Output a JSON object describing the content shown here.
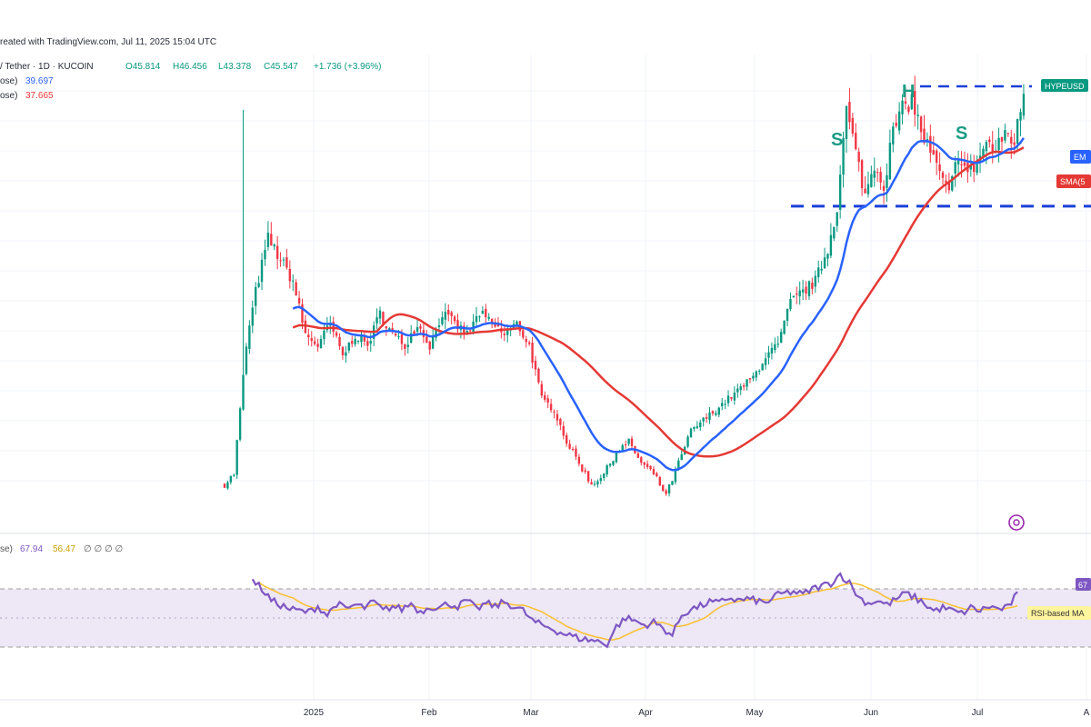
{
  "header": {
    "created_line": "reated with TradingView.com, Jul 11, 2025 15:04 UTC",
    "pair_line": "/ Tether · 1D · KUCOIN",
    "ohlc": {
      "open": "O45.814",
      "high": "H46.456",
      "low": "L43.378",
      "close": "C45.547",
      "change": "+1.736 (+3.96%)"
    },
    "ema_line_label": "ose)",
    "ema_value": "39.697",
    "sma_line_label": "ose)",
    "sma_value": "37.665",
    "rsi_line_label": "se)",
    "rsi_value": "67.94",
    "rsi_ma_value": "56.47",
    "rsi_extra": "∅ ∅ ∅ ∅"
  },
  "price_tags": {
    "last": "HYPEUSD",
    "ema": "EM",
    "sma": "SMA(5",
    "rsi": "67",
    "rsi_ma": "RSI-based MA"
  },
  "pattern_labels": {
    "left_shoulder": "S",
    "head": "H",
    "right_shoulder": "S"
  },
  "colors": {
    "up": "#089981",
    "down": "#f23645",
    "ema": "#2962ff",
    "sma": "#e53935",
    "rsi": "#7e57c2",
    "rsi_ma": "#fbc02d",
    "rsi_band": "#ede7f6",
    "neckline": "#1a3fd8",
    "pattern": "#1b9c85"
  },
  "chart_data": {
    "type": "candlestick",
    "x_ticks": [
      "2025",
      "Feb",
      "Mar",
      "Apr",
      "May",
      "Jun",
      "Jul",
      "A"
    ],
    "price_anchors": [
      [
        0,
        9
      ],
      [
        3,
        10
      ],
      [
        7,
        22
      ],
      [
        10,
        27
      ],
      [
        14,
        32
      ],
      [
        18,
        30
      ],
      [
        22,
        28
      ],
      [
        26,
        23
      ],
      [
        30,
        22
      ],
      [
        34,
        24
      ],
      [
        38,
        21
      ],
      [
        42,
        23
      ],
      [
        46,
        22
      ],
      [
        50,
        25
      ],
      [
        54,
        23
      ],
      [
        58,
        22
      ],
      [
        62,
        24
      ],
      [
        66,
        22
      ],
      [
        70,
        25
      ],
      [
        74,
        24
      ],
      [
        78,
        23
      ],
      [
        82,
        25
      ],
      [
        86,
        24
      ],
      [
        90,
        23
      ],
      [
        94,
        24
      ],
      [
        98,
        22
      ],
      [
        102,
        17
      ],
      [
        106,
        16
      ],
      [
        110,
        13
      ],
      [
        114,
        11
      ],
      [
        118,
        9
      ],
      [
        122,
        10
      ],
      [
        126,
        12
      ],
      [
        130,
        13
      ],
      [
        134,
        11
      ],
      [
        138,
        10
      ],
      [
        142,
        8
      ],
      [
        146,
        11
      ],
      [
        150,
        14
      ],
      [
        154,
        15
      ],
      [
        158,
        16
      ],
      [
        162,
        17
      ],
      [
        166,
        18
      ],
      [
        170,
        19
      ],
      [
        174,
        21
      ],
      [
        178,
        22
      ],
      [
        182,
        26
      ],
      [
        186,
        27
      ],
      [
        190,
        28
      ],
      [
        194,
        31
      ],
      [
        197,
        35
      ],
      [
        200,
        44
      ],
      [
        203,
        40
      ],
      [
        206,
        36
      ],
      [
        209,
        39
      ],
      [
        212,
        37
      ],
      [
        215,
        42
      ],
      [
        218,
        44
      ],
      [
        221,
        45
      ],
      [
        224,
        42
      ],
      [
        227,
        40
      ],
      [
        230,
        38
      ],
      [
        233,
        36
      ],
      [
        236,
        40
      ],
      [
        239,
        38
      ],
      [
        242,
        39
      ],
      [
        245,
        41
      ],
      [
        248,
        40
      ],
      [
        251,
        42
      ],
      [
        254,
        41
      ],
      [
        257,
        45.5
      ]
    ],
    "ema20_final": 39.697,
    "sma50_final": 37.665,
    "neckline": 35,
    "head_level": 46.2,
    "rsi_anchors": [
      [
        9,
        76
      ],
      [
        12,
        70
      ],
      [
        15,
        62
      ],
      [
        18,
        59
      ],
      [
        21,
        56
      ],
      [
        24,
        55
      ],
      [
        27,
        54
      ],
      [
        30,
        58
      ],
      [
        33,
        52
      ],
      [
        36,
        60
      ],
      [
        39,
        56
      ],
      [
        42,
        59
      ],
      [
        45,
        57
      ],
      [
        48,
        61
      ],
      [
        51,
        55
      ],
      [
        54,
        58
      ],
      [
        57,
        56
      ],
      [
        60,
        60
      ],
      [
        63,
        54
      ],
      [
        66,
        58
      ],
      [
        69,
        57
      ],
      [
        72,
        60
      ],
      [
        75,
        58
      ],
      [
        78,
        62
      ],
      [
        81,
        56
      ],
      [
        84,
        60
      ],
      [
        87,
        58
      ],
      [
        90,
        61
      ],
      [
        93,
        58
      ],
      [
        96,
        55
      ],
      [
        99,
        48
      ],
      [
        102,
        45
      ],
      [
        105,
        43
      ],
      [
        108,
        40
      ],
      [
        111,
        38
      ],
      [
        114,
        36
      ],
      [
        117,
        35
      ],
      [
        120,
        34
      ],
      [
        123,
        32
      ],
      [
        126,
        44
      ],
      [
        129,
        50
      ],
      [
        132,
        48
      ],
      [
        135,
        45
      ],
      [
        138,
        47
      ],
      [
        141,
        43
      ],
      [
        144,
        38
      ],
      [
        147,
        52
      ],
      [
        150,
        56
      ],
      [
        153,
        58
      ],
      [
        156,
        61
      ],
      [
        159,
        60
      ],
      [
        162,
        64
      ],
      [
        165,
        62
      ],
      [
        168,
        63
      ],
      [
        171,
        62
      ],
      [
        174,
        60
      ],
      [
        177,
        65
      ],
      [
        180,
        67
      ],
      [
        183,
        68
      ],
      [
        186,
        66
      ],
      [
        189,
        70
      ],
      [
        192,
        72
      ],
      [
        195,
        74
      ],
      [
        198,
        80
      ],
      [
        201,
        74
      ],
      [
        204,
        64
      ],
      [
        207,
        60
      ],
      [
        210,
        62
      ],
      [
        213,
        59
      ],
      [
        216,
        63
      ],
      [
        219,
        67
      ],
      [
        222,
        64
      ],
      [
        225,
        60
      ],
      [
        228,
        55
      ],
      [
        231,
        57
      ],
      [
        234,
        55
      ],
      [
        237,
        53
      ],
      [
        240,
        57
      ],
      [
        243,
        55
      ],
      [
        246,
        58
      ],
      [
        249,
        56
      ],
      [
        252,
        57
      ],
      [
        255,
        67.94
      ]
    ],
    "rsi_ma_final": 56.47,
    "rsi_band": [
      30,
      70
    ]
  }
}
